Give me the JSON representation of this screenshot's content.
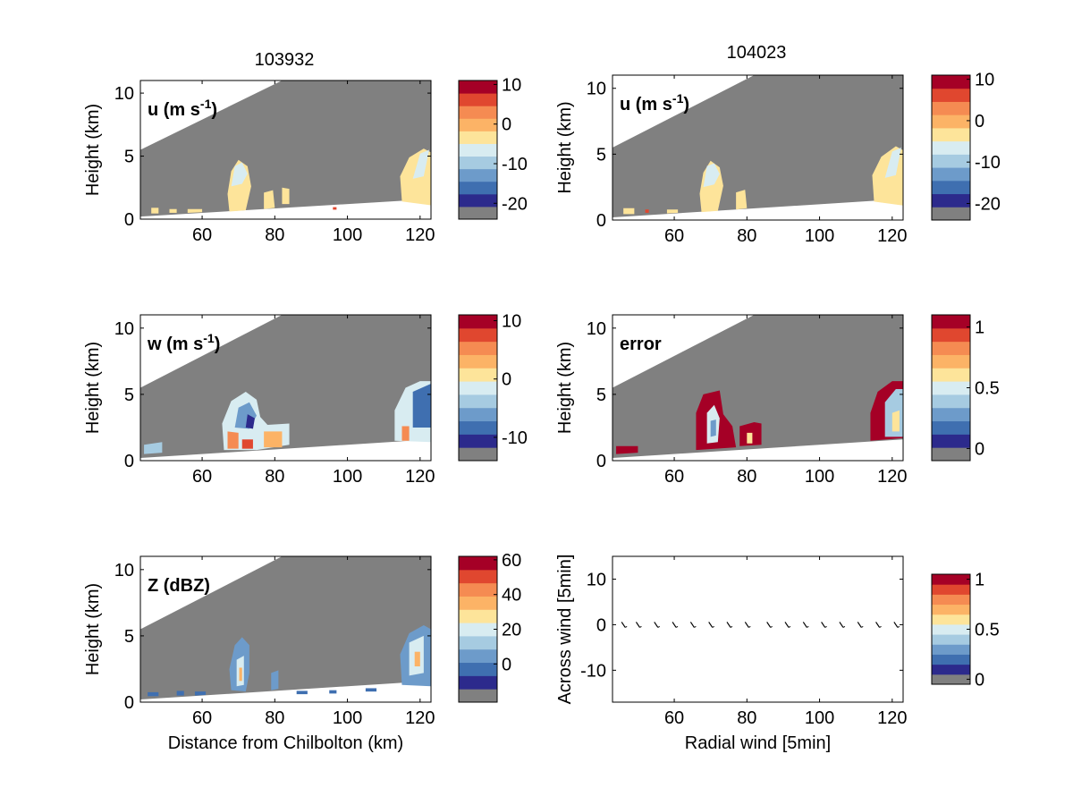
{
  "figure": {
    "left_title": "103932",
    "right_title": "104023"
  },
  "colors": {
    "ramp": [
      "#2c2a8c",
      "#3f6fb0",
      "#6d9bca",
      "#a6cbe1",
      "#d8ecf1",
      "#fde49a",
      "#fcb366",
      "#f58b52",
      "#e0472f",
      "#a50026"
    ],
    "background": "#808080"
  },
  "chart_data": [
    {
      "id": "u-left",
      "type": "heatmap",
      "title": "103932",
      "panel_label": "u (m s",
      "panel_label_sup": "-1",
      "panel_label_end": ")",
      "ylabel": "Height (km)",
      "xlabel": "",
      "xlim": [
        43,
        123
      ],
      "ylim": [
        0,
        11
      ],
      "xticks": [
        "60",
        "80",
        "100",
        "120"
      ],
      "yticks": [
        "0",
        "5",
        "10"
      ],
      "colorbar": {
        "range": [
          -24,
          11
        ],
        "ticks": [
          "10",
          "0",
          "-10",
          "-20"
        ]
      },
      "grid": false
    },
    {
      "id": "u-right",
      "type": "heatmap",
      "title": "104023",
      "panel_label": "u (m s",
      "panel_label_sup": "-1",
      "panel_label_end": ")",
      "ylabel": "Height (km)",
      "xlabel": "",
      "xlim": [
        43,
        123
      ],
      "ylim": [
        0,
        11
      ],
      "xticks": [
        "60",
        "80",
        "100",
        "120"
      ],
      "yticks": [
        "0",
        "5",
        "10"
      ],
      "colorbar": {
        "range": [
          -24,
          11
        ],
        "ticks": [
          "10",
          "0",
          "-10",
          "-20"
        ]
      },
      "grid": false
    },
    {
      "id": "w-left",
      "type": "heatmap",
      "panel_label": "w (m s",
      "panel_label_sup": "-1",
      "panel_label_end": ")",
      "ylabel": "Height (km)",
      "xlabel": "",
      "xlim": [
        43,
        123
      ],
      "ylim": [
        0,
        11
      ],
      "xticks": [
        "60",
        "80",
        "100",
        "120"
      ],
      "yticks": [
        "0",
        "5",
        "10"
      ],
      "colorbar": {
        "range": [
          -14,
          11
        ],
        "ticks": [
          "10",
          "0",
          "-10"
        ]
      },
      "grid": false
    },
    {
      "id": "error-right",
      "type": "heatmap",
      "panel_label": "error",
      "ylabel": "Height (km)",
      "xlabel": "",
      "xlim": [
        43,
        123
      ],
      "ylim": [
        0,
        11
      ],
      "xticks": [
        "60",
        "80",
        "100",
        "120"
      ],
      "yticks": [
        "0",
        "5",
        "10"
      ],
      "colorbar": {
        "range": [
          -0.1,
          1.1
        ],
        "ticks": [
          "1",
          "0.5",
          "0"
        ]
      },
      "grid": false
    },
    {
      "id": "z-left",
      "type": "heatmap",
      "panel_label": "Z (dBZ)",
      "ylabel": "Height (km)",
      "xlabel": "Distance from Chilbolton (km)",
      "xlim": [
        43,
        123
      ],
      "ylim": [
        0,
        11
      ],
      "xticks": [
        "60",
        "80",
        "100",
        "120"
      ],
      "yticks": [
        "0",
        "5",
        "10"
      ],
      "colorbar": {
        "range": [
          -22,
          62
        ],
        "ticks": [
          "60",
          "40",
          "20",
          "0"
        ]
      },
      "grid": false
    },
    {
      "id": "wind-right",
      "type": "scatter",
      "panel_label": "",
      "ylabel": "Across wind [5min]",
      "xlabel": "Radial wind [5min]",
      "xlim": [
        43,
        123
      ],
      "ylim": [
        -17,
        15
      ],
      "xticks": [
        "60",
        "80",
        "100",
        "120"
      ],
      "yticks": [
        "-10",
        "0",
        "10"
      ],
      "colorbar": {
        "range": [
          -0.05,
          1.05
        ],
        "ticks": [
          "1",
          "0.5",
          "0"
        ]
      },
      "arrows_x": [
        46,
        50,
        55,
        60,
        65,
        70,
        75,
        80,
        86,
        91,
        96,
        101,
        106,
        111,
        116,
        121
      ],
      "arrows_y": [
        0,
        0,
        0,
        0,
        0,
        0,
        0,
        0,
        0,
        0,
        0,
        0,
        0,
        0,
        0,
        0
      ],
      "grid": false
    }
  ]
}
